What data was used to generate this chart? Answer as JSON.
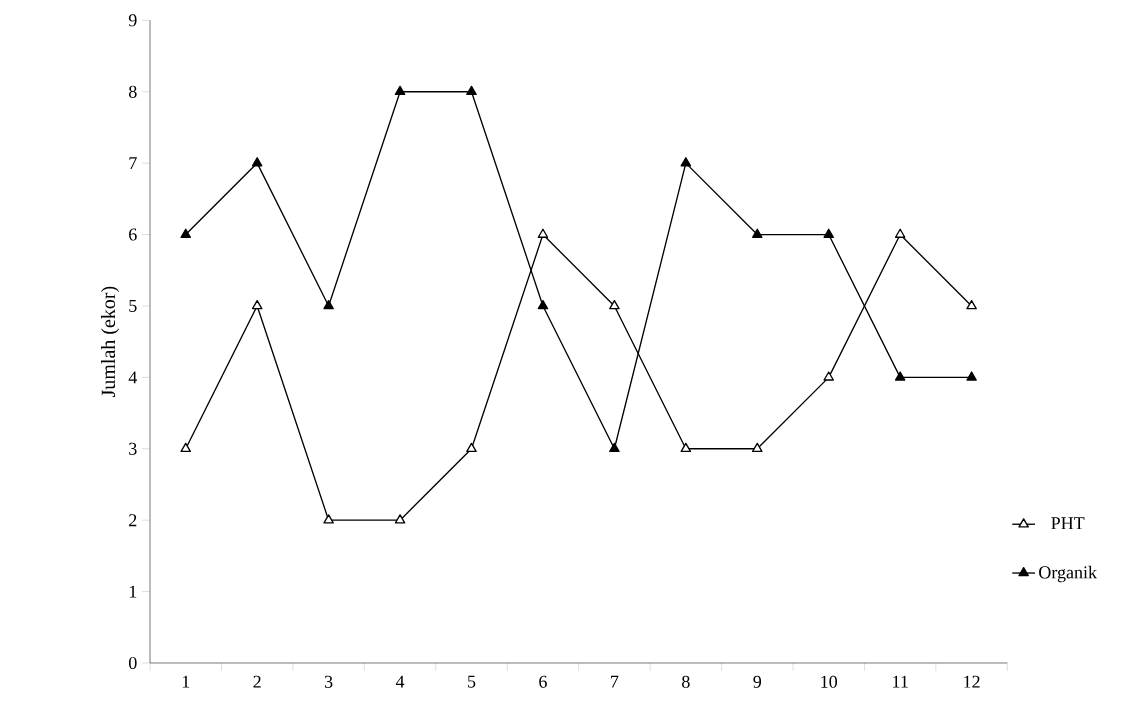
{
  "chart_data": {
    "type": "line",
    "ylabel": "Jumlah (ekor)",
    "categories": [
      "1",
      "2",
      "3",
      "4",
      "5",
      "6",
      "7",
      "8",
      "9",
      "10",
      "11",
      "12"
    ],
    "series": [
      {
        "name": "PHT",
        "color": "#000000",
        "values": [
          3,
          5,
          2,
          2,
          3,
          6,
          5,
          3,
          3,
          4,
          6,
          5
        ]
      },
      {
        "name": "Organik",
        "color": "#000000",
        "values": [
          6,
          7,
          5,
          8,
          8,
          5,
          3,
          7,
          6,
          6,
          4,
          4
        ]
      }
    ],
    "ylim": [
      0,
      9
    ],
    "yticks": [
      0,
      1,
      2,
      3,
      4,
      5,
      6,
      7,
      8,
      9
    ],
    "grid": false,
    "legend": "right",
    "marker": "triangle",
    "line_style": "solid"
  }
}
